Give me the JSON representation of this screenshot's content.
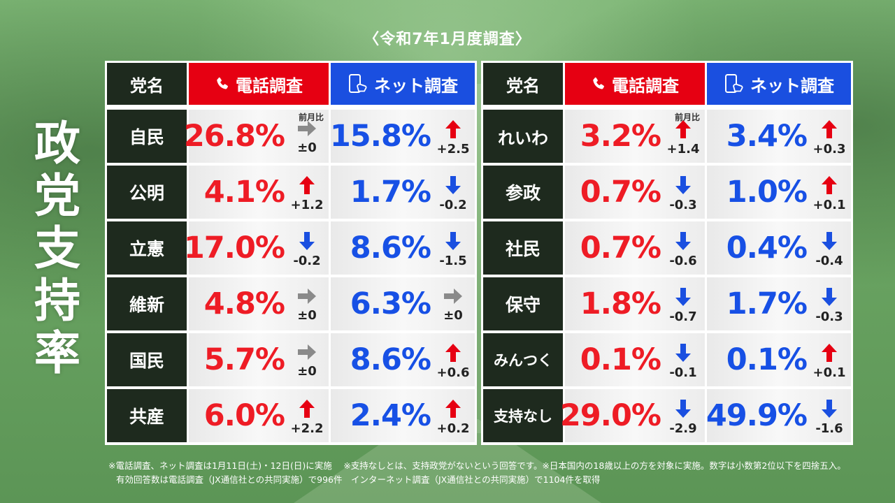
{
  "subtitle": "〈令和7年1月度調査〉",
  "title_chars": [
    "政",
    "党",
    "支",
    "持",
    "率"
  ],
  "headers": {
    "party": "党名",
    "phone": "電話調査",
    "net": "ネット調査"
  },
  "prev_label": "前月比",
  "colors": {
    "phone": "#e60012",
    "net": "#1a4fe0",
    "up": "#e60012",
    "down": "#1a4fe0",
    "flat": "#8a8a8a"
  },
  "chart_data": {
    "type": "table",
    "columns": [
      "党名",
      "電話調査",
      "前月比",
      "ネット調査",
      "前月比"
    ],
    "rows": [
      {
        "party": "自民",
        "phone": "26.8%",
        "phone_change": "±0",
        "phone_trend": "flat",
        "net": "15.8%",
        "net_change": "+2.5",
        "net_trend": "up"
      },
      {
        "party": "公明",
        "phone": "4.1%",
        "phone_change": "+1.2",
        "phone_trend": "up",
        "net": "1.7%",
        "net_change": "-0.2",
        "net_trend": "down"
      },
      {
        "party": "立憲",
        "phone": "17.0%",
        "phone_change": "-0.2",
        "phone_trend": "down",
        "net": "8.6%",
        "net_change": "-1.5",
        "net_trend": "down"
      },
      {
        "party": "維新",
        "phone": "4.8%",
        "phone_change": "±0",
        "phone_trend": "flat",
        "net": "6.3%",
        "net_change": "±0",
        "net_trend": "flat"
      },
      {
        "party": "国民",
        "phone": "5.7%",
        "phone_change": "±0",
        "phone_trend": "flat",
        "net": "8.6%",
        "net_change": "+0.6",
        "net_trend": "up"
      },
      {
        "party": "共産",
        "phone": "6.0%",
        "phone_change": "+2.2",
        "phone_trend": "up",
        "net": "2.4%",
        "net_change": "+0.2",
        "net_trend": "up"
      },
      {
        "party": "れいわ",
        "phone": "3.2%",
        "phone_change": "+1.4",
        "phone_trend": "up",
        "net": "3.4%",
        "net_change": "+0.3",
        "net_trend": "up"
      },
      {
        "party": "参政",
        "phone": "0.7%",
        "phone_change": "-0.3",
        "phone_trend": "down",
        "net": "1.0%",
        "net_change": "+0.1",
        "net_trend": "up"
      },
      {
        "party": "社民",
        "phone": "0.7%",
        "phone_change": "-0.6",
        "phone_trend": "down",
        "net": "0.4%",
        "net_change": "-0.4",
        "net_trend": "down"
      },
      {
        "party": "保守",
        "phone": "1.8%",
        "phone_change": "-0.7",
        "phone_trend": "down",
        "net": "1.7%",
        "net_change": "-0.3",
        "net_trend": "down"
      },
      {
        "party": "みんつく",
        "phone": "0.1%",
        "phone_change": "-0.1",
        "phone_trend": "down",
        "net": "0.1%",
        "net_change": "+0.1",
        "net_trend": "up"
      },
      {
        "party": "支持なし",
        "phone": "29.0%",
        "phone_change": "-2.9",
        "phone_trend": "down",
        "net": "49.9%",
        "net_change": "-1.6",
        "net_trend": "down"
      }
    ]
  },
  "notes": [
    "※電話調査、ネット調査は1月11日(土)・12日(日)に実施　 ※支持なしとは、支持政党がないという回答です。※日本国内の18歳以上の方を対象に実施。数字は小数第2位以下を四捨五入。",
    "有効回答数は電話調査（JX通信社との共同実施）で996件　インターネット調査（JX通信社との共同実施）で1104件を取得"
  ]
}
